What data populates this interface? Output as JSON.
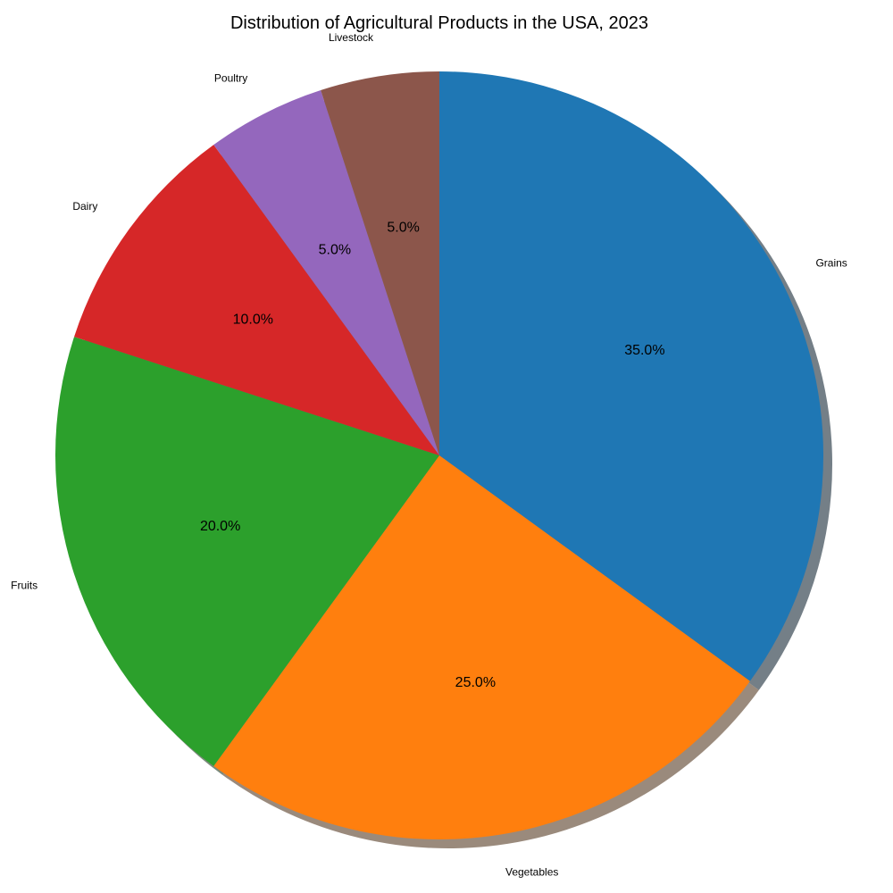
{
  "chart_data": {
    "type": "pie",
    "title": "Distribution of Agricultural Products in the USA, 2023",
    "categories": [
      "Grains",
      "Vegetables",
      "Fruits",
      "Dairy",
      "Poultry",
      "Livestock"
    ],
    "values": [
      35,
      25,
      20,
      10,
      5,
      5
    ],
    "value_labels": [
      "35.0%",
      "25.0%",
      "20.0%",
      "10.0%",
      "5.0%",
      "5.0%"
    ],
    "colors": [
      "#1f77b4",
      "#ff7f0e",
      "#2ca02c",
      "#d62728",
      "#9467bd",
      "#8c564b"
    ],
    "start_angle_deg": 90,
    "direction": "clockwise",
    "shadow": true,
    "legend": "none"
  }
}
